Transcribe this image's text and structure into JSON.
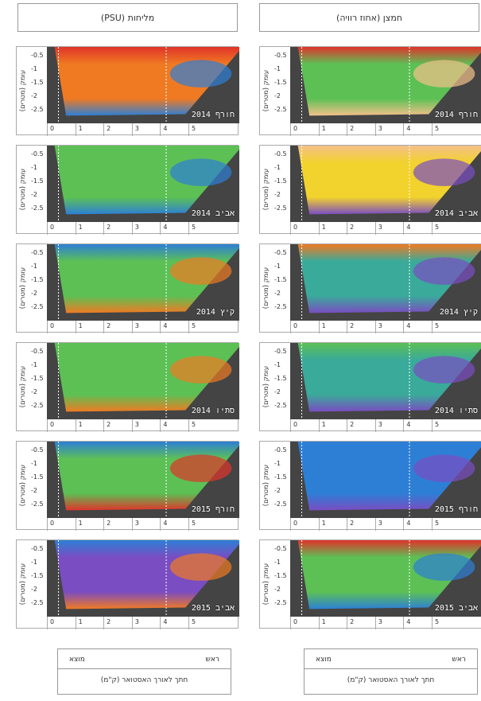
{
  "headers": {
    "salinity": "מליחות (PSU)",
    "oxygen": "חמצן (אחוז רוויה)"
  },
  "axis": {
    "ylabel": "עומק (מטרים)",
    "yticks": [
      "-0.5",
      "-1",
      "-1.5",
      "-2",
      "-2.5"
    ],
    "xticks": [
      "0",
      "1",
      "2",
      "3",
      "4",
      "5"
    ]
  },
  "footer": {
    "head_label": "ראש",
    "outlet_label": "מוצא",
    "xlabel": "חתך לאורך האסטואר (ק\"מ)"
  },
  "colors": {
    "bottom": "#444444",
    "red": "#e0342a",
    "orange": "#f07a22",
    "peach": "#f4c08a",
    "yellow": "#f2d22c",
    "green": "#5cc055",
    "teal": "#3aaa9a",
    "blue": "#2d7fd6",
    "purple": "#7a4dc2"
  },
  "chart_data": [
    {
      "type": "heatmap",
      "variable": "salinity",
      "season": "חורף 2014",
      "xlim": [
        0,
        6
      ],
      "ylim": [
        -2.5,
        -0.3
      ],
      "fill": "orange",
      "top": "red",
      "accent": "blue"
    },
    {
      "type": "heatmap",
      "variable": "oxygen",
      "season": "חורף 2014",
      "xlim": [
        0,
        6
      ],
      "ylim": [
        -2.5,
        -0.3
      ],
      "fill": "green",
      "top": "red",
      "accent": "peach"
    },
    {
      "type": "heatmap",
      "variable": "salinity",
      "season": "אביב 2014",
      "xlim": [
        0,
        6
      ],
      "ylim": [
        -2.5,
        -0.3
      ],
      "fill": "green",
      "top": "green",
      "accent": "blue"
    },
    {
      "type": "heatmap",
      "variable": "oxygen",
      "season": "אביב 2014",
      "xlim": [
        0,
        6
      ],
      "ylim": [
        -2.5,
        -0.3
      ],
      "fill": "yellow",
      "top": "peach",
      "accent": "purple"
    },
    {
      "type": "heatmap",
      "variable": "salinity",
      "season": "קיץ 2014",
      "xlim": [
        0,
        6
      ],
      "ylim": [
        -2.5,
        -0.3
      ],
      "fill": "green",
      "top": "blue",
      "accent": "orange"
    },
    {
      "type": "heatmap",
      "variable": "oxygen",
      "season": "קיץ 2014",
      "xlim": [
        0,
        6
      ],
      "ylim": [
        -2.5,
        -0.3
      ],
      "fill": "teal",
      "top": "orange",
      "accent": "purple"
    },
    {
      "type": "heatmap",
      "variable": "salinity",
      "season": "סתיו 2014",
      "xlim": [
        0,
        6
      ],
      "ylim": [
        -2.5,
        -0.3
      ],
      "fill": "green",
      "top": "green",
      "accent": "orange"
    },
    {
      "type": "heatmap",
      "variable": "oxygen",
      "season": "סתיו 2014",
      "xlim": [
        0,
        6
      ],
      "ylim": [
        -2.5,
        -0.3
      ],
      "fill": "teal",
      "top": "green",
      "accent": "purple"
    },
    {
      "type": "heatmap",
      "variable": "salinity",
      "season": "חורף 2015",
      "xlim": [
        0,
        6
      ],
      "ylim": [
        -2.5,
        -0.3
      ],
      "fill": "green",
      "top": "blue",
      "accent": "red"
    },
    {
      "type": "heatmap",
      "variable": "oxygen",
      "season": "חורף 2015",
      "xlim": [
        0,
        6
      ],
      "ylim": [
        -2.5,
        -0.3
      ],
      "fill": "blue",
      "top": "blue",
      "accent": "purple"
    },
    {
      "type": "heatmap",
      "variable": "salinity",
      "season": "אביב 2015",
      "xlim": [
        0,
        6
      ],
      "ylim": [
        -2.5,
        -0.3
      ],
      "fill": "purple",
      "top": "blue",
      "accent": "orange"
    },
    {
      "type": "heatmap",
      "variable": "oxygen",
      "season": "אביב 2015",
      "xlim": [
        0,
        6
      ],
      "ylim": [
        -2.5,
        -0.3
      ],
      "fill": "green",
      "top": "red",
      "accent": "blue"
    }
  ]
}
